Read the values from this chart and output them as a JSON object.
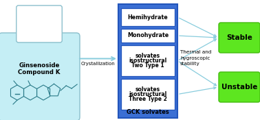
{
  "bg_color": "#ffffff",
  "bottle_bg": "#c5eef5",
  "bottle_outline": "#8bbfcc",
  "bottle_neck_bg": "#ffffff",
  "blue_box_bg": "#3b6fd4",
  "blue_box_border": "#2255bb",
  "white_box_bg": "#ffffff",
  "white_box_border": "#2255bb",
  "green_box_bg": "#5de620",
  "green_box_border": "#44bb10",
  "arrow_color": "#88ccdd",
  "bottle_text1": "Ginsenoside",
  "bottle_text2": "Compound K",
  "crystallization_text": "Crystallization",
  "box1_text": "Hemihydrate",
  "box2_text": "Monohydrate",
  "box3_line1": "Two Type 1",
  "box3_line2": "isostructural",
  "box3_line3": "solvates",
  "box4_line1": "Three Type 2",
  "box4_line2": "isostructural",
  "box4_line3": "solvates",
  "gck_label": "GCK solvates",
  "stability_text": "Thermal and\nhygroscopic\nstability",
  "stable_text": "Stable",
  "unstable_text": "Unstable",
  "mol_color": "#2a7a88",
  "fig_w": 3.78,
  "fig_h": 1.75,
  "dpi": 100
}
